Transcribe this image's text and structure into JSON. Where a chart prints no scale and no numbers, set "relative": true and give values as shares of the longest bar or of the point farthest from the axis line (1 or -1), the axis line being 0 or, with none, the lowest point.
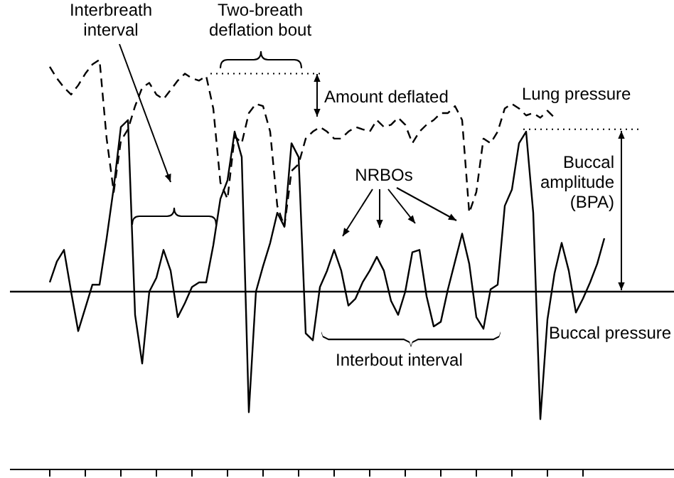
{
  "chart_data": {
    "type": "line",
    "relative": true,
    "categories": [
      null,
      null,
      null,
      null,
      null,
      null,
      null,
      null,
      null,
      null,
      null,
      null,
      null,
      null,
      null,
      null,
      null,
      null,
      null,
      null,
      null,
      null,
      null,
      null,
      null,
      null,
      null,
      null,
      null,
      null,
      null,
      null,
      null,
      null,
      null,
      null,
      null,
      null,
      null,
      null,
      null,
      null,
      null,
      null,
      null,
      null,
      null,
      null,
      null,
      null,
      null,
      null,
      null,
      null,
      null,
      null,
      null,
      null,
      null,
      null,
      null,
      null,
      null,
      null,
      null,
      null,
      null,
      null,
      null,
      null,
      null,
      null,
      null,
      null,
      null,
      null,
      null,
      null,
      null,
      null
    ],
    "series": [
      {
        "name": "Buccal pressure",
        "color": "#000000",
        "line_style": "solid",
        "values": [
          0.04,
          0.13,
          0.18,
          0.0,
          -0.17,
          -0.07,
          0.03,
          0.03,
          0.23,
          0.45,
          0.71,
          0.74,
          -0.1,
          -0.31,
          0.0,
          0.06,
          0.18,
          0.09,
          -0.11,
          -0.05,
          0.02,
          0.04,
          0.04,
          0.2,
          0.4,
          0.48,
          0.69,
          0.58,
          -0.52,
          0.0,
          0.11,
          0.21,
          0.34,
          0.28,
          0.64,
          0.58,
          -0.18,
          -0.21,
          0.02,
          0.09,
          0.18,
          0.09,
          -0.06,
          -0.03,
          0.04,
          0.09,
          0.15,
          0.09,
          -0.04,
          -0.1,
          0.0,
          0.17,
          0.18,
          -0.02,
          -0.15,
          -0.13,
          0.01,
          0.13,
          0.25,
          0.12,
          -0.11,
          -0.16,
          0.01,
          0.03,
          0.37,
          0.44,
          0.64,
          0.69,
          0.34,
          -0.55,
          -0.12,
          0.08,
          0.21,
          0.09,
          -0.09,
          -0.03,
          0.04,
          0.12,
          0.23,
          null
        ]
      },
      {
        "name": "Lung pressure",
        "color": "#000000",
        "line_style": "dashed",
        "values": [
          0.97,
          0.92,
          0.88,
          0.85,
          0.89,
          0.94,
          0.98,
          1.0,
          0.66,
          0.43,
          0.65,
          0.7,
          0.8,
          0.88,
          0.9,
          0.85,
          0.83,
          0.87,
          0.91,
          0.94,
          0.92,
          0.91,
          0.93,
          0.79,
          0.47,
          0.4,
          0.67,
          0.64,
          0.77,
          0.81,
          0.8,
          0.69,
          0.37,
          0.28,
          0.52,
          0.55,
          0.66,
          0.69,
          0.71,
          0.69,
          0.66,
          0.66,
          0.69,
          0.71,
          0.7,
          0.69,
          0.74,
          0.71,
          0.72,
          0.75,
          0.72,
          0.64,
          0.69,
          0.72,
          0.74,
          0.77,
          0.77,
          0.8,
          0.74,
          0.34,
          0.43,
          0.66,
          0.64,
          0.69,
          0.79,
          0.81,
          0.79,
          0.76,
          0.77,
          0.75,
          0.78,
          0.75,
          null,
          null,
          null,
          null,
          null,
          null,
          null,
          null
        ]
      }
    ],
    "ref_lines": [
      {
        "axis": "y",
        "value": 0
      },
      {
        "axis": "y",
        "value": 0.94,
        "line_style": "dotted"
      },
      {
        "axis": "y",
        "value": 0.7,
        "line_style": "dotted"
      }
    ],
    "annotations": [
      "Interbreath interval",
      "Two-breath deflation bout",
      "Amount deflated",
      "NRBOs",
      "Buccal amplitude (BPA)",
      "Interbout interval"
    ]
  }
}
